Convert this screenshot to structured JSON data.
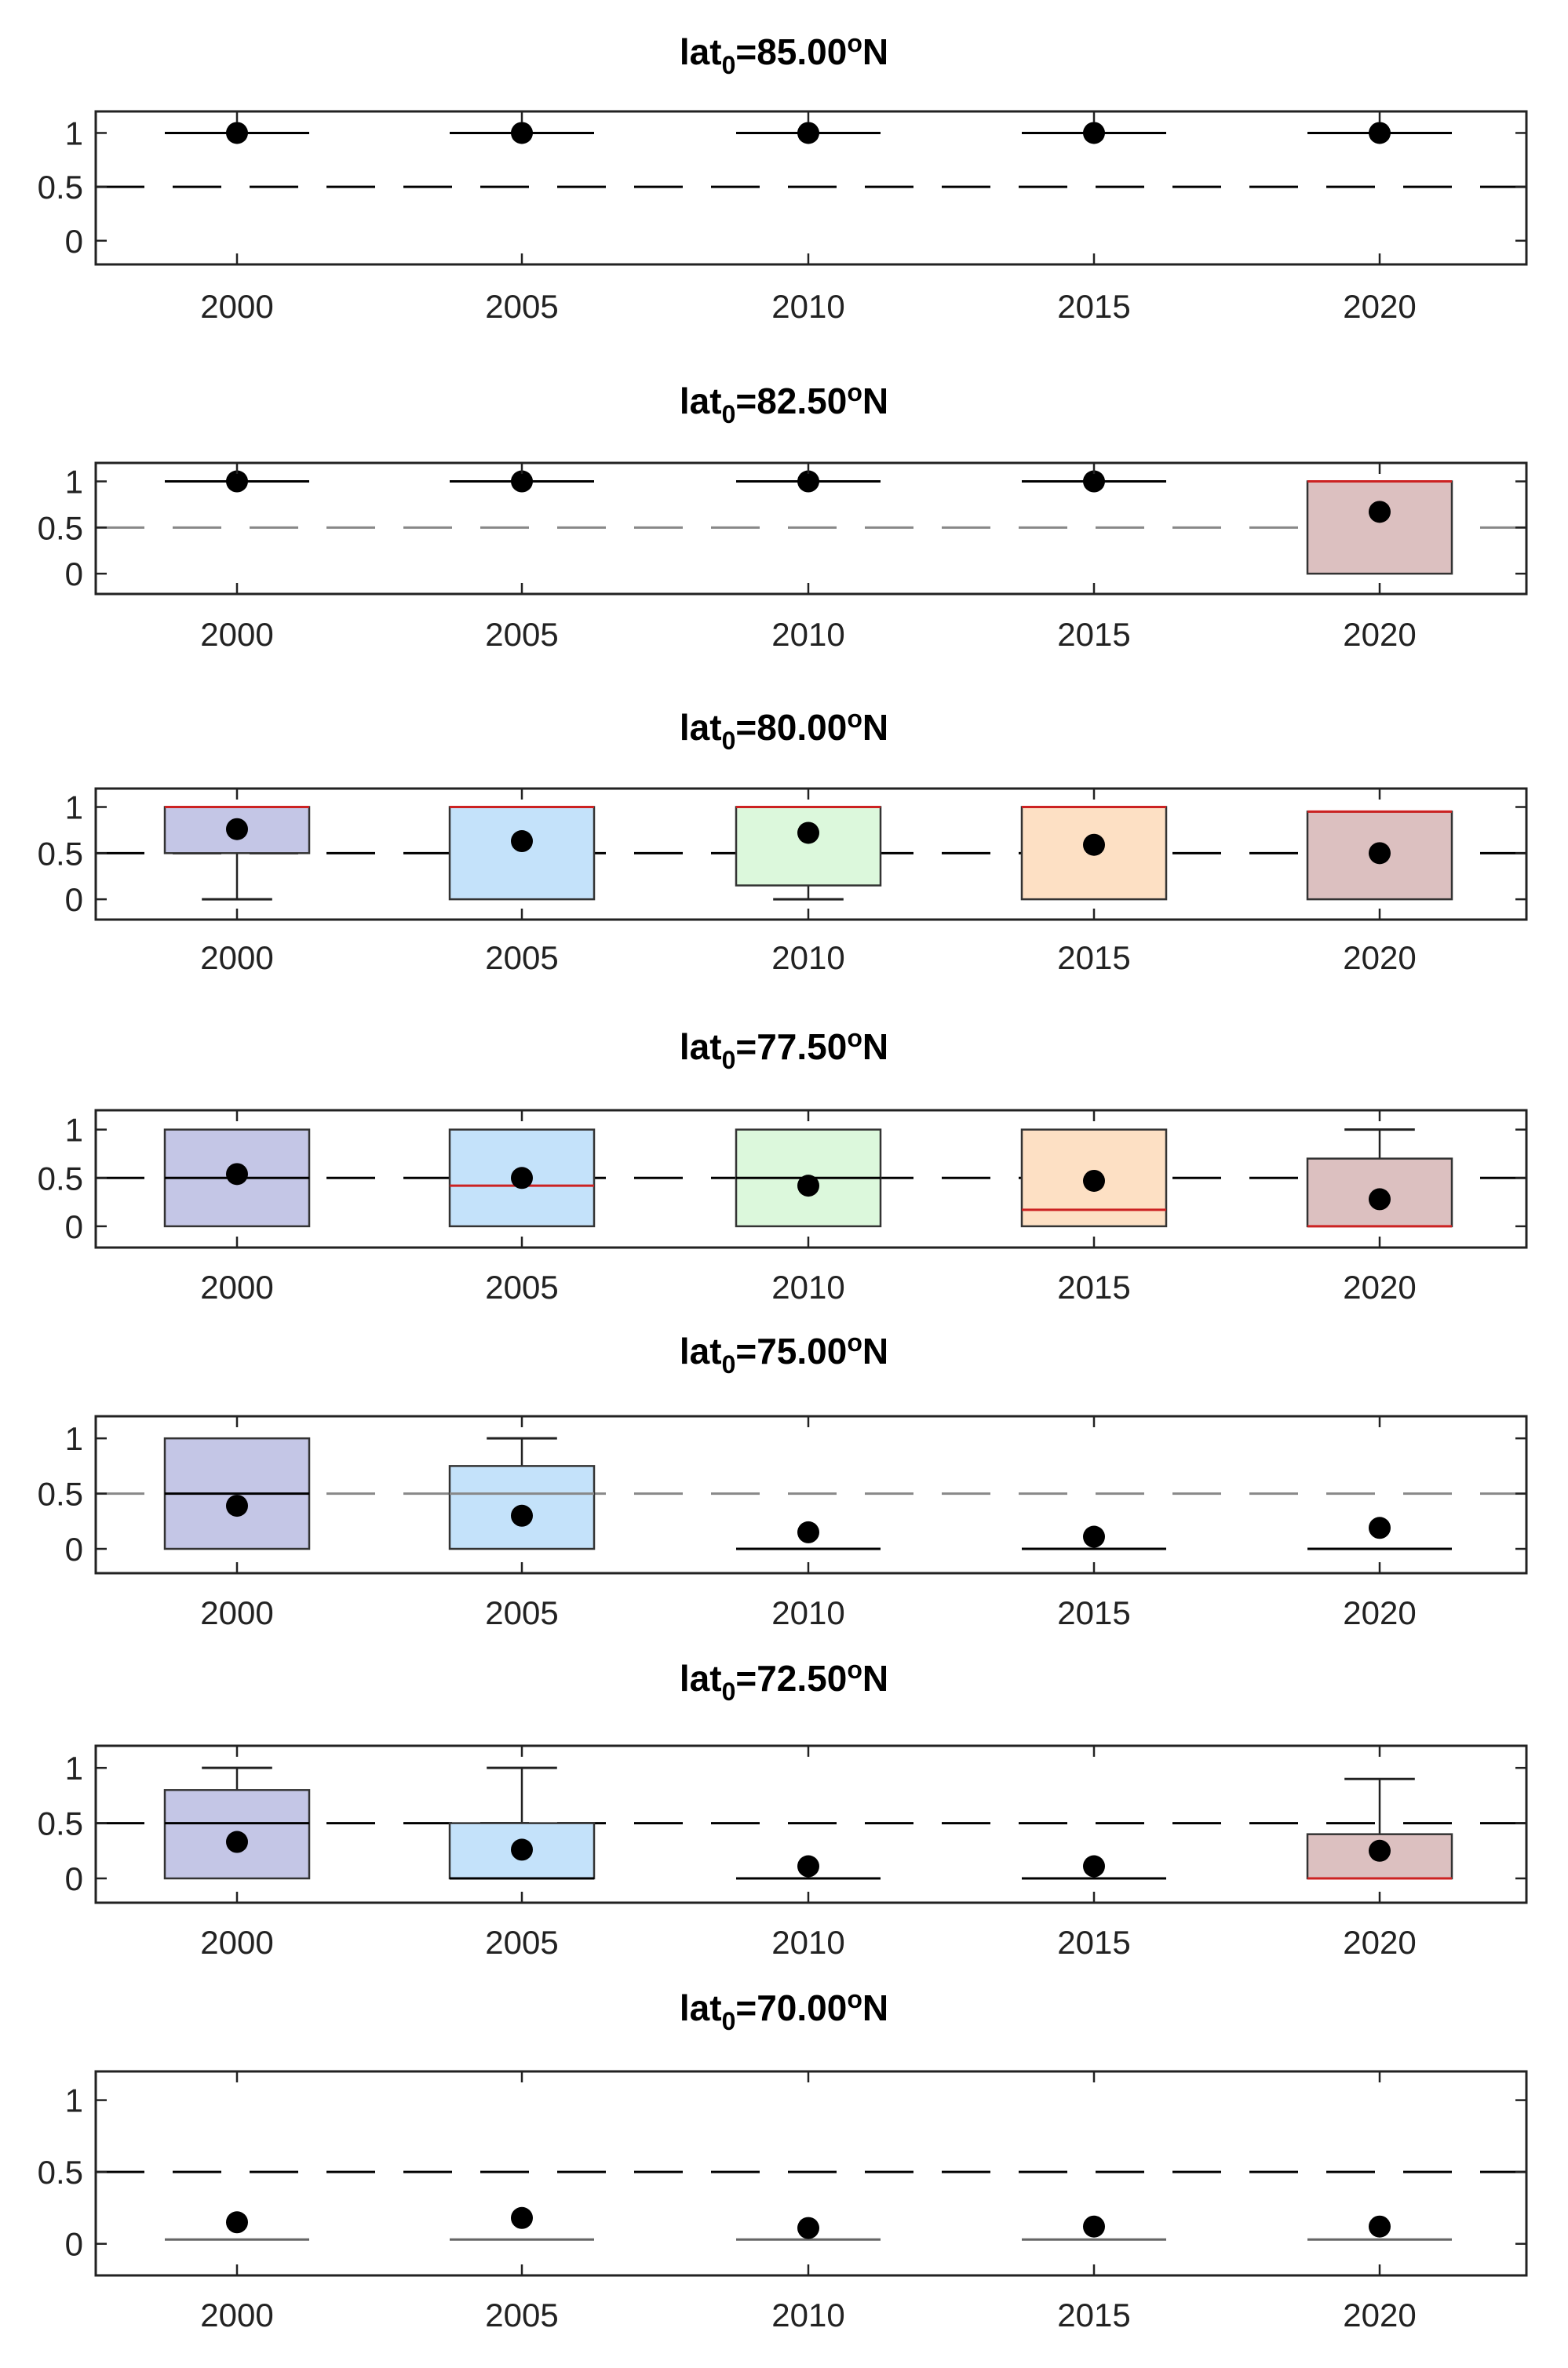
{
  "chart_data": [
    {
      "type": "box",
      "title": {
        "prefix": "lat",
        "sub": "0",
        "value": "=85.00",
        "sup": "o",
        "suffix": "N"
      },
      "categories": [
        "2000",
        "2005",
        "2010",
        "2015",
        "2020"
      ],
      "yticks": [
        "1",
        "0.5",
        "0"
      ],
      "ylim": [
        -0.22,
        1.2
      ],
      "reference_line": 0.5,
      "reference_color": "#000000",
      "boxes": [
        {
          "q1": 1,
          "median": 1,
          "q3": 1,
          "whisker_low": 1,
          "whisker_high": 1,
          "mean": 1,
          "fill": null,
          "median_color": "#000000"
        },
        {
          "q1": 1,
          "median": 1,
          "q3": 1,
          "whisker_low": 1,
          "whisker_high": 1,
          "mean": 1,
          "fill": null,
          "median_color": "#000000"
        },
        {
          "q1": 1,
          "median": 1,
          "q3": 1,
          "whisker_low": 1,
          "whisker_high": 1,
          "mean": 1,
          "fill": null,
          "median_color": "#000000"
        },
        {
          "q1": 1,
          "median": 1,
          "q3": 1,
          "whisker_low": 1,
          "whisker_high": 1,
          "mean": 1,
          "fill": null,
          "median_color": "#000000"
        },
        {
          "q1": 1,
          "median": 1,
          "q3": 1,
          "whisker_low": 1,
          "whisker_high": 1,
          "mean": 1,
          "fill": null,
          "median_color": "#000000"
        }
      ]
    },
    {
      "type": "box",
      "title": {
        "prefix": "lat",
        "sub": "0",
        "value": "=82.50",
        "sup": "o",
        "suffix": "N"
      },
      "categories": [
        "2000",
        "2005",
        "2010",
        "2015",
        "2020"
      ],
      "yticks": [
        "1",
        "0.5",
        "0"
      ],
      "ylim": [
        -0.22,
        1.2
      ],
      "reference_line": 0.5,
      "reference_color": "#888888",
      "boxes": [
        {
          "q1": 1,
          "median": 1,
          "q3": 1,
          "whisker_low": 1,
          "whisker_high": 1,
          "mean": 1,
          "fill": null,
          "median_color": "#000000"
        },
        {
          "q1": 1,
          "median": 1,
          "q3": 1,
          "whisker_low": 1,
          "whisker_high": 1,
          "mean": 1,
          "fill": null,
          "median_color": "#000000"
        },
        {
          "q1": 1,
          "median": 1,
          "q3": 1,
          "whisker_low": 1,
          "whisker_high": 1,
          "mean": 1,
          "fill": null,
          "median_color": "#000000"
        },
        {
          "q1": 1,
          "median": 1,
          "q3": 1,
          "whisker_low": 1,
          "whisker_high": 1,
          "mean": 1,
          "fill": null,
          "median_color": "#000000"
        },
        {
          "q1": 0,
          "median": 1,
          "q3": 1,
          "whisker_low": 0,
          "whisker_high": 1,
          "mean": 0.67,
          "fill": "#dcc0c0",
          "median_color": "#cc2222"
        }
      ]
    },
    {
      "type": "box",
      "title": {
        "prefix": "lat",
        "sub": "0",
        "value": "=80.00",
        "sup": "o",
        "suffix": "N"
      },
      "categories": [
        "2000",
        "2005",
        "2010",
        "2015",
        "2020"
      ],
      "yticks": [
        "1",
        "0.5",
        "0"
      ],
      "ylim": [
        -0.22,
        1.2
      ],
      "reference_line": 0.5,
      "reference_color": "#000000",
      "boxes": [
        {
          "q1": 0.5,
          "median": 1,
          "q3": 1,
          "whisker_low": 0,
          "whisker_high": 1,
          "mean": 0.76,
          "fill": "#c4c6e6",
          "median_color": "#cc2222"
        },
        {
          "q1": 0,
          "median": 1,
          "q3": 1,
          "whisker_low": 0,
          "whisker_high": 1,
          "mean": 0.63,
          "fill": "#c4e2fa",
          "median_color": "#cc2222"
        },
        {
          "q1": 0.15,
          "median": 1,
          "q3": 1,
          "whisker_low": 0,
          "whisker_high": 1,
          "mean": 0.72,
          "fill": "#dcf8dc",
          "median_color": "#cc2222"
        },
        {
          "q1": 0,
          "median": 1,
          "q3": 1,
          "whisker_low": 0,
          "whisker_high": 1,
          "mean": 0.59,
          "fill": "#fde0c4",
          "median_color": "#cc2222"
        },
        {
          "q1": 0,
          "median": 0.95,
          "q3": 0.95,
          "whisker_low": 0,
          "whisker_high": 0.95,
          "mean": 0.5,
          "fill": "#dcc0c0",
          "median_color": "#cc2222"
        }
      ]
    },
    {
      "type": "box",
      "title": {
        "prefix": "lat",
        "sub": "0",
        "value": "=77.50",
        "sup": "o",
        "suffix": "N"
      },
      "categories": [
        "2000",
        "2005",
        "2010",
        "2015",
        "2020"
      ],
      "yticks": [
        "1",
        "0.5",
        "0"
      ],
      "ylim": [
        -0.22,
        1.2
      ],
      "reference_line": 0.5,
      "reference_color": "#000000",
      "boxes": [
        {
          "q1": 0,
          "median": 0.5,
          "q3": 1,
          "whisker_low": 0,
          "whisker_high": 1,
          "mean": 0.54,
          "fill": "#c4c6e6",
          "median_color": "#000000"
        },
        {
          "q1": 0,
          "median": 0.42,
          "q3": 1,
          "whisker_low": 0,
          "whisker_high": 1,
          "mean": 0.5,
          "fill": "#c4e2fa",
          "median_color": "#cc2222"
        },
        {
          "q1": 0,
          "median": 0.5,
          "q3": 1,
          "whisker_low": 0,
          "whisker_high": 1,
          "mean": 0.42,
          "fill": "#dcf8dc",
          "median_color": "#000000"
        },
        {
          "q1": 0,
          "median": 0.17,
          "q3": 1,
          "whisker_low": 0,
          "whisker_high": 1,
          "mean": 0.47,
          "fill": "#fde0c4",
          "median_color": "#cc2222"
        },
        {
          "q1": 0,
          "median": 0,
          "q3": 0.7,
          "whisker_low": 0,
          "whisker_high": 1,
          "mean": 0.28,
          "fill": "#dcc0c0",
          "median_color": "#cc2222"
        }
      ]
    },
    {
      "type": "box",
      "title": {
        "prefix": "lat",
        "sub": "0",
        "value": "=75.00",
        "sup": "o",
        "suffix": "N"
      },
      "categories": [
        "2000",
        "2005",
        "2010",
        "2015",
        "2020"
      ],
      "yticks": [
        "1",
        "0.5",
        "0"
      ],
      "ylim": [
        -0.22,
        1.2
      ],
      "reference_line": 0.5,
      "reference_color": "#888888",
      "boxes": [
        {
          "q1": 0,
          "median": 0.5,
          "q3": 1,
          "whisker_low": 0,
          "whisker_high": 1,
          "mean": 0.39,
          "fill": "#c4c6e6",
          "median_color": "#000000"
        },
        {
          "q1": 0,
          "median": 0.5,
          "q3": 0.75,
          "whisker_low": 0,
          "whisker_high": 1,
          "mean": 0.3,
          "fill": "#c4e2fa",
          "median_color": "#888888"
        },
        {
          "q1": 0,
          "median": 0,
          "q3": 0,
          "whisker_low": 0,
          "whisker_high": 0,
          "mean": 0.15,
          "fill": null,
          "median_color": "#000000"
        },
        {
          "q1": 0,
          "median": 0,
          "q3": 0,
          "whisker_low": 0,
          "whisker_high": 0,
          "mean": 0.11,
          "fill": null,
          "median_color": "#000000"
        },
        {
          "q1": 0,
          "median": 0,
          "q3": 0,
          "whisker_low": 0,
          "whisker_high": 0,
          "mean": 0.19,
          "fill": null,
          "median_color": "#000000"
        }
      ]
    },
    {
      "type": "box",
      "title": {
        "prefix": "lat",
        "sub": "0",
        "value": "=72.50",
        "sup": "o",
        "suffix": "N"
      },
      "categories": [
        "2000",
        "2005",
        "2010",
        "2015",
        "2020"
      ],
      "yticks": [
        "1",
        "0.5",
        "0"
      ],
      "ylim": [
        -0.22,
        1.2
      ],
      "reference_line": 0.5,
      "reference_color": "#000000",
      "boxes": [
        {
          "q1": 0,
          "median": 0.5,
          "q3": 0.8,
          "whisker_low": 0,
          "whisker_high": 1,
          "mean": 0.33,
          "fill": "#c4c6e6",
          "median_color": "#000000"
        },
        {
          "q1": 0,
          "median": 0,
          "q3": 0.5,
          "whisker_low": 0,
          "whisker_high": 1,
          "mean": 0.26,
          "fill": "#c4e2fa",
          "median_color": "#000000"
        },
        {
          "q1": 0,
          "median": 0,
          "q3": 0,
          "whisker_low": 0,
          "whisker_high": 0,
          "mean": 0.11,
          "fill": null,
          "median_color": "#000000"
        },
        {
          "q1": 0,
          "median": 0,
          "q3": 0,
          "whisker_low": 0,
          "whisker_high": 0,
          "mean": 0.11,
          "fill": null,
          "median_color": "#000000"
        },
        {
          "q1": 0,
          "median": 0,
          "q3": 0.4,
          "whisker_low": 0,
          "whisker_high": 0.9,
          "mean": 0.25,
          "fill": "#dcc0c0",
          "median_color": "#cc2222"
        }
      ]
    },
    {
      "type": "box",
      "title": {
        "prefix": "lat",
        "sub": "0",
        "value": "=70.00",
        "sup": "o",
        "suffix": "N"
      },
      "categories": [
        "2000",
        "2005",
        "2010",
        "2015",
        "2020"
      ],
      "yticks": [
        "1",
        "0.5",
        "0"
      ],
      "ylim": [
        -0.22,
        1.2
      ],
      "reference_line": 0.5,
      "reference_color": "#000000",
      "boxes": [
        {
          "q1": 0.03,
          "median": 0.03,
          "q3": 0.03,
          "whisker_low": 0.03,
          "whisker_high": 0.03,
          "mean": 0.15,
          "fill": null,
          "median_color": "#666666"
        },
        {
          "q1": 0.03,
          "median": 0.03,
          "q3": 0.03,
          "whisker_low": 0.03,
          "whisker_high": 0.03,
          "mean": 0.18,
          "fill": null,
          "median_color": "#666666"
        },
        {
          "q1": 0.03,
          "median": 0.03,
          "q3": 0.03,
          "whisker_low": 0.03,
          "whisker_high": 0.03,
          "mean": 0.11,
          "fill": null,
          "median_color": "#666666"
        },
        {
          "q1": 0.03,
          "median": 0.03,
          "q3": 0.03,
          "whisker_low": 0.03,
          "whisker_high": 0.03,
          "mean": 0.12,
          "fill": null,
          "median_color": "#666666"
        },
        {
          "q1": 0.03,
          "median": 0.03,
          "q3": 0.03,
          "whisker_low": 0.03,
          "whisker_high": 0.03,
          "mean": 0.12,
          "fill": null,
          "median_color": "#666666"
        }
      ]
    }
  ]
}
